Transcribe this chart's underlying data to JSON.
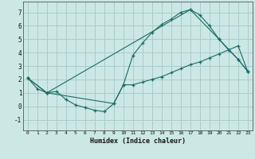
{
  "xlabel": "Humidex (Indice chaleur)",
  "ylabel": "",
  "bg_color": "#cce8e4",
  "line_color": "#1a6b66",
  "grid_color": "#aacccc",
  "xlim": [
    -0.5,
    23.5
  ],
  "ylim": [
    -1.8,
    7.8
  ],
  "yticks": [
    -1,
    0,
    1,
    2,
    3,
    4,
    5,
    6,
    7
  ],
  "xticks": [
    0,
    1,
    2,
    3,
    4,
    5,
    6,
    7,
    8,
    9,
    10,
    11,
    12,
    13,
    14,
    15,
    16,
    17,
    18,
    19,
    20,
    21,
    22,
    23
  ],
  "line1_x": [
    0,
    1,
    2,
    3,
    4,
    5,
    6,
    7,
    8,
    9,
    10,
    11,
    12,
    13,
    14,
    15,
    16,
    17,
    18,
    19,
    20,
    21,
    22,
    23
  ],
  "line1_y": [
    2.1,
    1.3,
    1.0,
    1.1,
    0.5,
    0.1,
    -0.1,
    -0.3,
    -0.4,
    0.2,
    1.6,
    3.8,
    4.7,
    5.5,
    6.1,
    6.5,
    7.0,
    7.2,
    6.8,
    6.0,
    5.0,
    4.2,
    3.5,
    2.6
  ],
  "line2_x": [
    0,
    2,
    9,
    10,
    11,
    12,
    13,
    14,
    15,
    16,
    17,
    18,
    19,
    20,
    21,
    22,
    23
  ],
  "line2_y": [
    2.1,
    1.0,
    0.2,
    1.6,
    1.6,
    1.8,
    2.0,
    2.2,
    2.5,
    2.8,
    3.1,
    3.3,
    3.6,
    3.9,
    4.2,
    4.5,
    2.6
  ],
  "line3_x": [
    0,
    2,
    17,
    20,
    22,
    23
  ],
  "line3_y": [
    2.1,
    1.0,
    7.2,
    5.0,
    3.5,
    2.6
  ]
}
